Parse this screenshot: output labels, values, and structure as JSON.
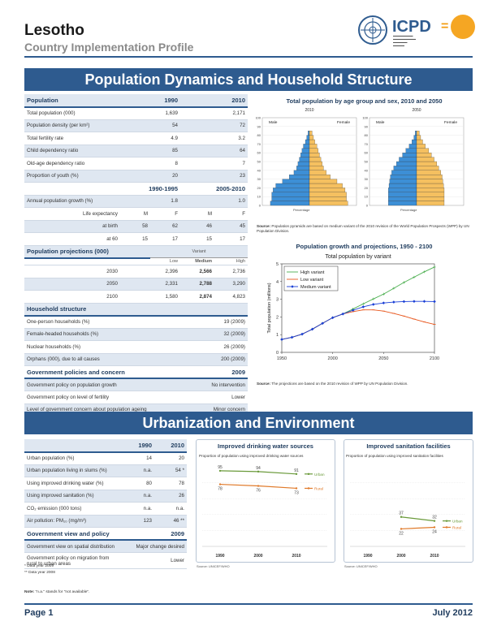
{
  "header": {
    "country": "Lesotho",
    "subtitle": "Country Implementation Profile",
    "logo_text": "ICPD",
    "logo_eq": "="
  },
  "section1": {
    "title": "Population Dynamics and Household Structure"
  },
  "section2": {
    "title": "Urbanization and Environment"
  },
  "population": {
    "heading": "Population",
    "y1": "1990",
    "y2": "2010",
    "rows": [
      {
        "label": "Total population (000)",
        "v1": "1,639",
        "v2": "2,171"
      },
      {
        "label": "Population density (per km²)",
        "v1": "54",
        "v2": "72"
      },
      {
        "label": "Total fertility rate",
        "v1": "4.9",
        "v2": "3.2"
      },
      {
        "label": "Child dependency ratio",
        "v1": "85",
        "v2": "64"
      },
      {
        "label": "Old-age dependency ratio",
        "v1": "8",
        "v2": "7"
      },
      {
        "label": "Proportion of youth (%)",
        "v1": "20",
        "v2": "23"
      }
    ],
    "p1": "1990-1995",
    "p2": "2005-2010",
    "growth": {
      "label": "Annual population growth (%)",
      "v1": "1.8",
      "v2": "1.0"
    },
    "le": {
      "label": "Life expectancy",
      "m1": "M",
      "f1": "F",
      "m2": "M",
      "f2": "F"
    },
    "birth": {
      "label": "at birth",
      "a": "58",
      "b": "62",
      "c": "46",
      "d": "45"
    },
    "sixty": {
      "label": "at 60",
      "a": "15",
      "b": "17",
      "c": "15",
      "d": "17"
    }
  },
  "projections": {
    "heading": "Population projections (000)",
    "variant": "Variant",
    "cols": [
      "Low",
      "Medium",
      "High"
    ],
    "rows": [
      {
        "year": "2030",
        "low": "2,396",
        "med": "2,566",
        "high": "2,736"
      },
      {
        "year": "2050",
        "low": "2,331",
        "med": "2,788",
        "high": "3,290"
      },
      {
        "year": "2100",
        "low": "1,580",
        "med": "2,874",
        "high": "4,823"
      }
    ]
  },
  "household": {
    "heading": "Household structure",
    "rows": [
      {
        "label": "One-person households (%)",
        "value": "19 (2009)"
      },
      {
        "label": "Female-headed households (%)",
        "value": "32 (2009)"
      },
      {
        "label": "Nuclear households (%)",
        "value": "26 (2009)"
      },
      {
        "label": "Orphans (000), due to all causes",
        "value": "200 (2009)"
      }
    ]
  },
  "policies": {
    "heading": "Government policies and concern",
    "year": "2009",
    "rows": [
      {
        "label": "Government policy on population growth",
        "value": "No intervention"
      },
      {
        "label": "Government policy on level of fertility",
        "value": "Lower"
      },
      {
        "label": "Level of government concern about population ageing",
        "value": "Minor concern"
      }
    ]
  },
  "pyramid": {
    "title": "Total population by age group and sex, 2010 and 2050",
    "year_a": "2010",
    "year_b": "2050",
    "male": "Male",
    "female": "Female",
    "xlabel": "Percentage",
    "ages": [
      "100",
      "90",
      "80",
      "70",
      "60",
      "50",
      "40",
      "30",
      "20",
      "10",
      "0"
    ],
    "source_bold": "Source:",
    "source": " Population pyramids are based on medium variant of the 2010 revision of the World Population Prospects (WPP) by UN Population Division.",
    "colors": {
      "male": "#3d8fd6",
      "female": "#f5c060"
    }
  },
  "growth_chart": {
    "heading": "Population growth and projections, 1950 - 2100",
    "source_bold": "Source:",
    "source": " The projections are based on the 2010 revision of WPP by UN Population Division."
  },
  "urban": {
    "y1": "1990",
    "y2": "2010",
    "rows": [
      {
        "label": "Urban population (%)",
        "v1": "14",
        "v2": "20"
      },
      {
        "label": "Urban population living in slums (%)",
        "v1": "n.a.",
        "v2": "54 *"
      },
      {
        "label": "Using improved drinking water (%)",
        "v1": "80",
        "v2": "78"
      },
      {
        "label": "Using improved sanitation (%)",
        "v1": "n.a.",
        "v2": "26"
      },
      {
        "label": "CO₂ emission (000 tons)",
        "v1": "n.a.",
        "v2": "n.a."
      },
      {
        "label": "Air pollution: PM₁₀ (mg/m³)",
        "v1": "123",
        "v2": "46 **"
      }
    ],
    "gov_heading": "Government view and policy",
    "gov_year": "2009",
    "gov_rows": [
      {
        "label": "Government view on spatial distribution",
        "value": "Major change desired"
      },
      {
        "label": "Government policy on migration from rural to urban areas",
        "value": "Lower"
      }
    ],
    "fn1": "* Data year 2009",
    "fn2": "** Data year 2008",
    "note_bold": "Note:",
    "note": " \"n.a.\" stands for \"not available\"."
  },
  "water_chart": {
    "title": "Improved drinking water sources",
    "subtitle": "Proportion of population using improved drinking water sources",
    "source": "Source: UNICEF/WHO",
    "urban_label": "Urban",
    "rural_label": "Rural",
    "data_labels_urban": [
      "95",
      "94",
      "91"
    ],
    "data_labels_rural": [
      "78",
      "76",
      "73"
    ]
  },
  "san_chart": {
    "title": "Improved sanitation facilities",
    "subtitle": "Proportion of population using improved sanitation facilities",
    "source": "Source: UNICEF/WHO",
    "urban_label": "Urban",
    "rural_label": "Rural",
    "data_labels_urban": [
      "37",
      "32"
    ],
    "data_labels_rural": [
      "22",
      "24"
    ]
  },
  "footer": {
    "page": "Page 1",
    "date": "July 2012"
  },
  "chart_data": [
    {
      "type": "line",
      "title": "Total population by variant",
      "xlabel": "",
      "ylabel": "Total population (millions)",
      "xlim": [
        1950,
        2100
      ],
      "ylim": [
        0,
        5
      ],
      "x_ticks": [
        "1950",
        "2000",
        "2050",
        "2100"
      ],
      "y_ticks": [
        "0",
        "1",
        "2",
        "3",
        "4",
        "5"
      ],
      "legend": "top-left",
      "x": [
        1950,
        1960,
        1970,
        1980,
        1990,
        2000,
        2010,
        2020,
        2030,
        2040,
        2050,
        2060,
        2070,
        2080,
        2090,
        2100
      ],
      "series": [
        {
          "name": "High variant",
          "color": "#4caf50",
          "values": [
            0.73,
            0.85,
            1.03,
            1.31,
            1.64,
            1.96,
            2.17,
            2.45,
            2.74,
            3.02,
            3.29,
            3.62,
            3.95,
            4.25,
            4.55,
            4.82
          ]
        },
        {
          "name": "Low variant",
          "color": "#e8561c",
          "values": [
            0.73,
            0.85,
            1.03,
            1.31,
            1.64,
            1.96,
            2.17,
            2.3,
            2.4,
            2.4,
            2.33,
            2.2,
            2.05,
            1.88,
            1.72,
            1.58
          ]
        },
        {
          "name": "Medium variant",
          "color": "#1a3fd6",
          "values": [
            0.73,
            0.85,
            1.03,
            1.31,
            1.64,
            1.96,
            2.17,
            2.38,
            2.57,
            2.71,
            2.79,
            2.84,
            2.87,
            2.88,
            2.88,
            2.87
          ]
        }
      ]
    },
    {
      "type": "line",
      "title": "Improved drinking water sources",
      "categories": [
        "1990",
        "2000",
        "2010"
      ],
      "ylim": [
        0,
        100
      ],
      "series": [
        {
          "name": "Urban",
          "color": "#6a9a3a",
          "values": [
            95,
            94,
            91
          ]
        },
        {
          "name": "Rural",
          "color": "#e07a2a",
          "values": [
            78,
            76,
            73
          ]
        }
      ]
    },
    {
      "type": "line",
      "title": "Improved sanitation facilities",
      "categories": [
        "1990",
        "2000",
        "2010"
      ],
      "ylim": [
        0,
        100
      ],
      "series": [
        {
          "name": "Urban",
          "color": "#6a9a3a",
          "values": [
            null,
            37,
            32
          ]
        },
        {
          "name": "Rural",
          "color": "#e07a2a",
          "values": [
            null,
            22,
            24
          ]
        }
      ]
    },
    {
      "type": "bar",
      "title": "Population pyramid 2010",
      "categories": [
        "0-4",
        "5-9",
        "10-14",
        "15-19",
        "20-24",
        "25-29",
        "30-34",
        "35-39",
        "40-44",
        "45-49",
        "50-54",
        "55-59",
        "60-64",
        "65-69",
        "70-74",
        "75-79",
        "80+"
      ],
      "series": [
        {
          "name": "Male",
          "values": [
            5.8,
            5.6,
            5.6,
            5.4,
            5.0,
            4.0,
            3.0,
            2.3,
            1.9,
            1.7,
            1.5,
            1.3,
            1.1,
            0.9,
            0.6,
            0.4,
            0.2
          ]
        },
        {
          "name": "Female",
          "values": [
            5.7,
            5.5,
            5.5,
            5.3,
            4.9,
            4.1,
            3.1,
            2.5,
            2.1,
            1.9,
            1.7,
            1.5,
            1.3,
            1.1,
            0.8,
            0.6,
            0.4
          ]
        }
      ]
    },
    {
      "type": "bar",
      "title": "Population pyramid 2050",
      "categories": [
        "0-4",
        "5-9",
        "10-14",
        "15-19",
        "20-24",
        "25-29",
        "30-34",
        "35-39",
        "40-44",
        "45-49",
        "50-54",
        "55-59",
        "60-64",
        "65-69",
        "70-74",
        "75-79",
        "80+"
      ],
      "series": [
        {
          "name": "Male",
          "values": [
            4.2,
            4.2,
            4.2,
            4.2,
            4.1,
            4.0,
            3.9,
            3.7,
            3.4,
            3.0,
            2.6,
            2.1,
            1.6,
            1.1,
            0.7,
            0.4,
            0.2
          ]
        },
        {
          "name": "Female",
          "values": [
            4.1,
            4.1,
            4.1,
            4.1,
            4.0,
            3.9,
            3.8,
            3.6,
            3.3,
            3.0,
            2.6,
            2.2,
            1.8,
            1.3,
            0.9,
            0.6,
            0.4
          ]
        }
      ]
    }
  ]
}
